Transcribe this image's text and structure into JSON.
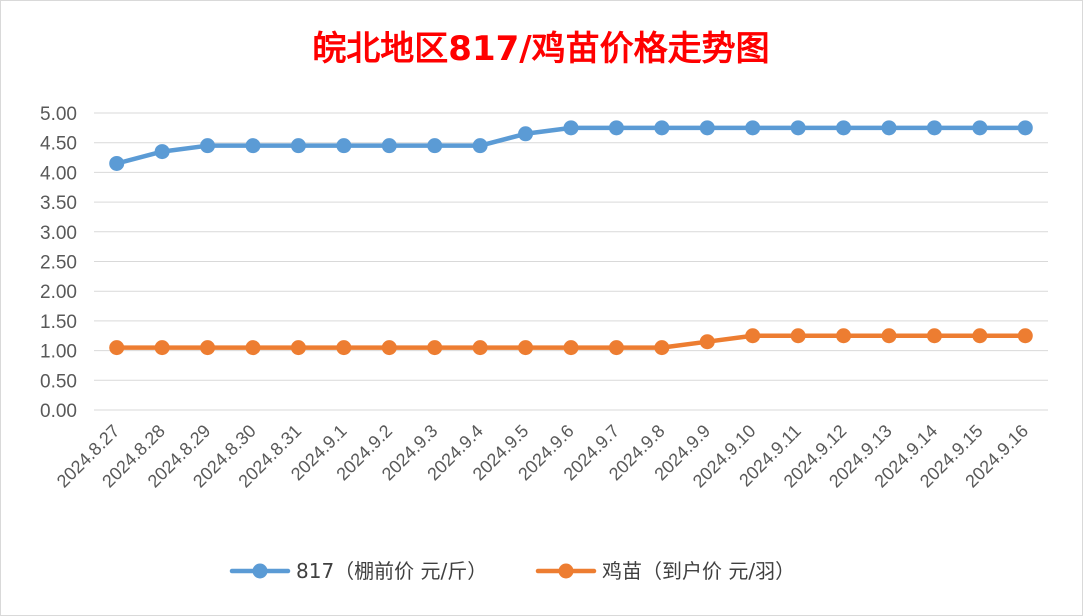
{
  "chart_data": {
    "type": "line",
    "title": "皖北地区817/鸡苗价格走势图",
    "xlabel": "",
    "ylabel": "",
    "ylim": [
      0,
      5
    ],
    "yticks": [
      "0.00",
      "0.50",
      "1.00",
      "1.50",
      "2.00",
      "2.50",
      "3.00",
      "3.50",
      "4.00",
      "4.50",
      "5.00"
    ],
    "grid": true,
    "legend_position": "bottom",
    "categories": [
      "2024.8.27",
      "2024.8.28",
      "2024.8.29",
      "2024.8.30",
      "2024.8.31",
      "2024.9.1",
      "2024.9.2",
      "2024.9.3",
      "2024.9.4",
      "2024.9.5",
      "2024.9.6",
      "2024.9.7",
      "2024.9.8",
      "2024.9.9",
      "2024.9.10",
      "2024.9.11",
      "2024.9.12",
      "2024.9.13",
      "2024.9.14",
      "2024.9.15",
      "2024.9.16"
    ],
    "series": [
      {
        "name": "817（棚前价 元/斤）",
        "color": "#5b9bd5",
        "values": [
          4.15,
          4.35,
          4.45,
          4.45,
          4.45,
          4.45,
          4.45,
          4.45,
          4.45,
          4.65,
          4.75,
          4.75,
          4.75,
          4.75,
          4.75,
          4.75,
          4.75,
          4.75,
          4.75,
          4.75,
          4.75
        ]
      },
      {
        "name": "鸡苗（到户价 元/羽）",
        "color": "#ed7d31",
        "values": [
          1.05,
          1.05,
          1.05,
          1.05,
          1.05,
          1.05,
          1.05,
          1.05,
          1.05,
          1.05,
          1.05,
          1.05,
          1.05,
          1.15,
          1.25,
          1.25,
          1.25,
          1.25,
          1.25,
          1.25,
          1.25
        ]
      }
    ]
  }
}
